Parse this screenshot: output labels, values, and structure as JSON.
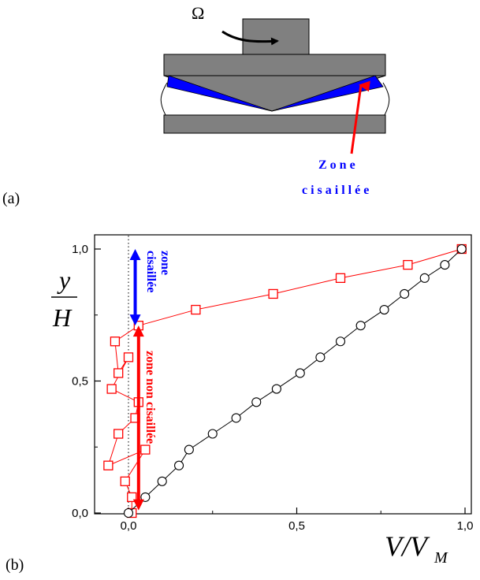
{
  "figure": {
    "panel_a": {
      "label": "(a)",
      "omega": "Ω",
      "zone_line1": "Z o n e",
      "zone_line2": "c i s a i l l é e"
    },
    "panel_b": {
      "label": "(b)"
    }
  },
  "chart_data": {
    "type": "scatter",
    "xlim": [
      -0.12,
      1.0
    ],
    "ylim": [
      0.0,
      1.0
    ],
    "x_ticks": [
      "0,0",
      "0,5",
      "1,0"
    ],
    "y_ticks": [
      "0,0",
      "0,5",
      "1,0"
    ],
    "xlabel": {
      "main": "V/V",
      "sub": "M"
    },
    "ylabel": {
      "num": "y",
      "den": "H"
    },
    "grid": false,
    "series": [
      {
        "marker": "square",
        "color": "#ff0000",
        "points": [
          [
            0.01,
            0.0
          ],
          [
            0.01,
            0.06
          ],
          [
            -0.01,
            0.12
          ],
          [
            0.05,
            0.24
          ],
          [
            -0.06,
            0.18
          ],
          [
            -0.03,
            0.3
          ],
          [
            0.02,
            0.36
          ],
          [
            0.03,
            0.42
          ],
          [
            -0.05,
            0.47
          ],
          [
            0.0,
            0.59
          ],
          [
            -0.03,
            0.53
          ],
          [
            -0.04,
            0.65
          ],
          [
            0.03,
            0.71
          ],
          [
            0.2,
            0.77
          ],
          [
            0.43,
            0.83
          ],
          [
            0.63,
            0.89
          ],
          [
            0.83,
            0.94
          ],
          [
            0.99,
            1.0
          ]
        ]
      },
      {
        "marker": "circle",
        "color": "#000000",
        "points": [
          [
            0.0,
            0.0
          ],
          [
            0.05,
            0.06
          ],
          [
            0.1,
            0.12
          ],
          [
            0.15,
            0.18
          ],
          [
            0.18,
            0.24
          ],
          [
            0.25,
            0.3
          ],
          [
            0.32,
            0.36
          ],
          [
            0.38,
            0.42
          ],
          [
            0.44,
            0.47
          ],
          [
            0.51,
            0.53
          ],
          [
            0.57,
            0.59
          ],
          [
            0.63,
            0.65
          ],
          [
            0.69,
            0.71
          ],
          [
            0.76,
            0.77
          ],
          [
            0.82,
            0.83
          ],
          [
            0.88,
            0.89
          ],
          [
            0.94,
            0.94
          ],
          [
            0.99,
            1.0
          ]
        ]
      }
    ],
    "annotations": {
      "dotted_x": 0.0,
      "sheared": {
        "text1": "zone",
        "text2": "cisaillée",
        "color": "#0000ff",
        "y_from": 0.71,
        "y_to": 1.0,
        "x": 0.02
      },
      "unsheared": {
        "text": "zone non cisaillée",
        "color": "#ff0000",
        "y_from": 0.01,
        "y_to": 0.71,
        "x": 0.03
      }
    }
  }
}
